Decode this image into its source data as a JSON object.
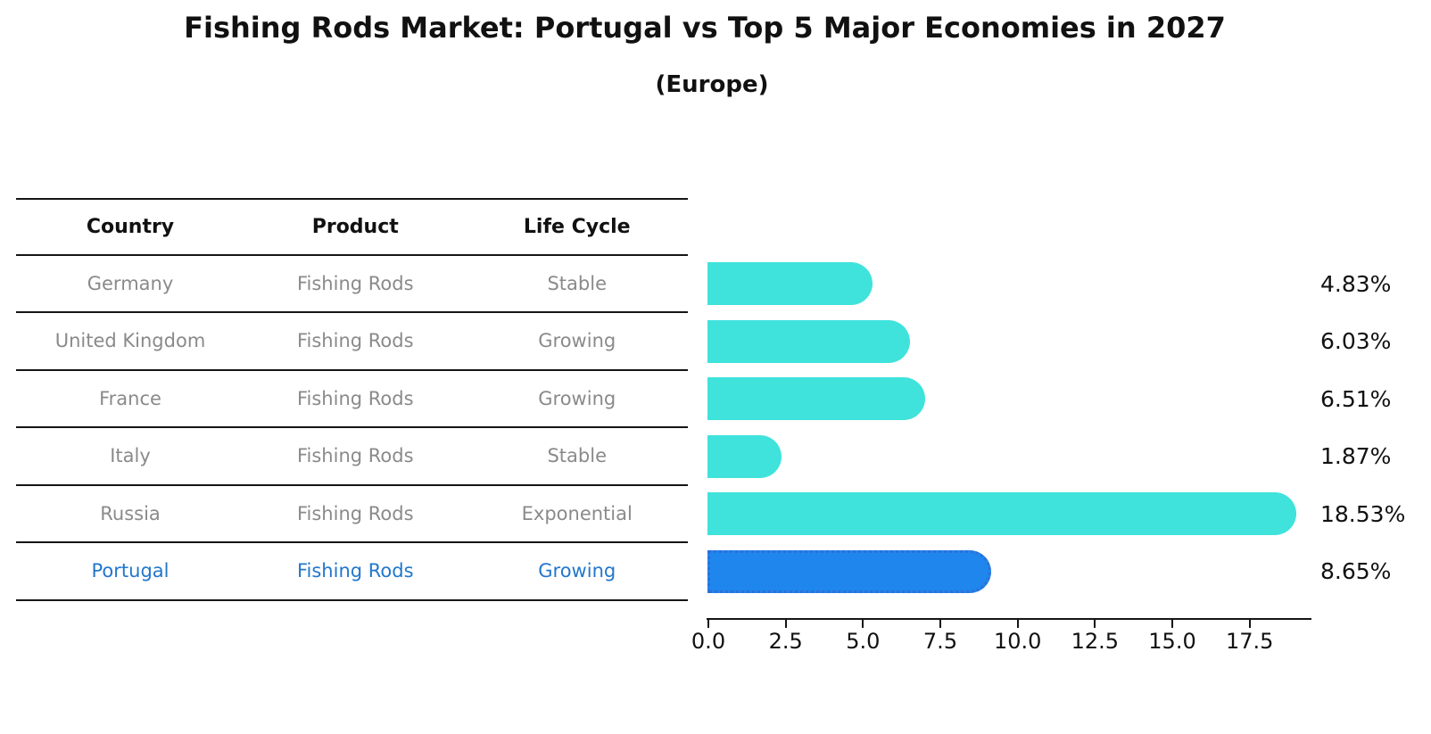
{
  "title": "Fishing Rods Market: Portugal vs Top 5 Major Economies in 2027",
  "subtitle": "(Europe)",
  "table": {
    "headers": {
      "country": "Country",
      "product": "Product",
      "life_cycle": "Life Cycle"
    },
    "rows": [
      {
        "country": "Germany",
        "product": "Fishing Rods",
        "life_cycle": "Stable"
      },
      {
        "country": "United Kingdom",
        "product": "Fishing Rods",
        "life_cycle": "Growing"
      },
      {
        "country": "France",
        "product": "Fishing Rods",
        "life_cycle": "Growing"
      },
      {
        "country": "Italy",
        "product": "Fishing Rods",
        "life_cycle": "Stable"
      },
      {
        "country": "Russia",
        "product": "Fishing Rods",
        "life_cycle": "Exponential"
      },
      {
        "country": "Portugal",
        "product": "Fishing Rods",
        "life_cycle": "Growing"
      }
    ],
    "highlight_row_index": 5
  },
  "chart_data": {
    "type": "bar",
    "orientation": "horizontal",
    "title": "Fishing Rods Market: Portugal vs Top 5 Major Economies in 2027",
    "subtitle": "(Europe)",
    "categories": [
      "Germany",
      "United Kingdom",
      "France",
      "Italy",
      "Russia",
      "Portugal"
    ],
    "values": [
      4.83,
      6.03,
      6.51,
      1.87,
      18.53,
      8.65
    ],
    "value_labels": [
      "4.83%",
      "6.03%",
      "6.51%",
      "1.87%",
      "18.53%",
      "8.65%"
    ],
    "highlight_index": 5,
    "x_ticks": [
      "0.0",
      "2.5",
      "5.0",
      "7.5",
      "10.0",
      "12.5",
      "15.0",
      "17.5"
    ],
    "xlim": [
      0,
      19.5
    ],
    "grid": false,
    "legend": false,
    "unit": "%"
  },
  "colors": {
    "bar_fill": "#40E2DC",
    "highlight_fill": "#1E86EC",
    "highlight_border": "#2F6ED8",
    "highlight_text": "#2277CC",
    "table_text": "#8A8A8A",
    "axis_text": "#111111",
    "line": "#151515"
  }
}
